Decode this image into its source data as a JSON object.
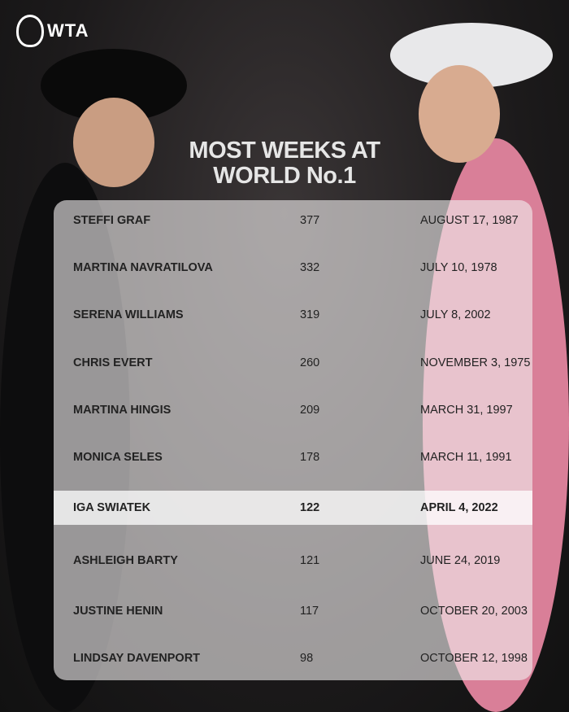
{
  "brand": {
    "logo_text": "WTA"
  },
  "title": {
    "line1": "MOST WEEKS AT",
    "line2": "WORLD No.1"
  },
  "colors": {
    "highlight_row": "#ffffff",
    "panel": "#efeded",
    "title": "#e6e6e6"
  },
  "rows": [
    {
      "name": "STEFFI GRAF",
      "weeks": "377",
      "date": "AUGUST 17, 1987"
    },
    {
      "name": "MARTINA NAVRATILOVA",
      "weeks": "332",
      "date": "JULY 10, 1978"
    },
    {
      "name": "SERENA WILLIAMS",
      "weeks": "319",
      "date": "JULY 8, 2002"
    },
    {
      "name": "CHRIS EVERT",
      "weeks": "260",
      "date": "NOVEMBER 3, 1975"
    },
    {
      "name": "MARTINA HINGIS",
      "weeks": "209",
      "date": "MARCH 31, 1997"
    },
    {
      "name": "MONICA SELES",
      "weeks": "178",
      "date": "MARCH 11, 1991"
    },
    {
      "name": "IGA SWIATEK",
      "weeks": "122",
      "date": "APRIL 4, 2022",
      "highlighted": true
    },
    {
      "name": "ASHLEIGH BARTY",
      "weeks": "121",
      "date": "JUNE 24, 2019"
    },
    {
      "name": "JUSTINE HENIN",
      "weeks": "117",
      "date": "OCTOBER 20, 2003"
    },
    {
      "name": "LINDSAY DAVENPORT",
      "weeks": "98",
      "date": "OCTOBER 12, 1998"
    }
  ]
}
